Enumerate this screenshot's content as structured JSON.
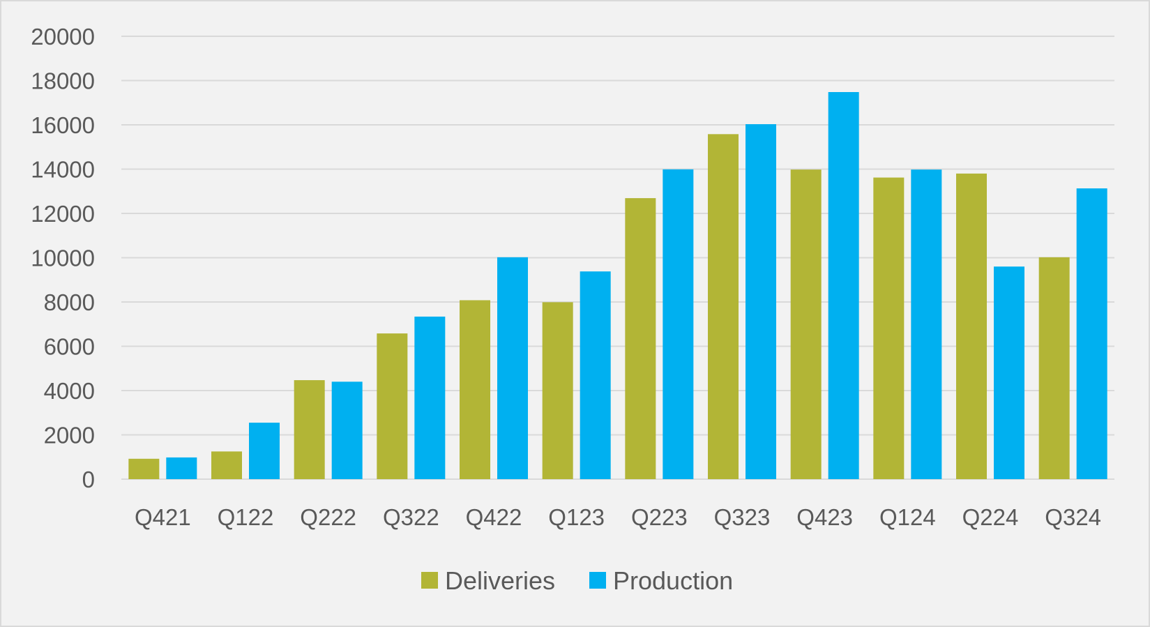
{
  "chart_data": {
    "type": "bar",
    "title": "",
    "xlabel": "",
    "ylabel": "",
    "categories": [
      "Q421",
      "Q122",
      "Q222",
      "Q322",
      "Q422",
      "Q123",
      "Q223",
      "Q323",
      "Q423",
      "Q124",
      "Q224",
      "Q324"
    ],
    "series": [
      {
        "name": "Deliveries",
        "color": "#b2b536",
        "values": [
          920,
          1250,
          4470,
          6580,
          8080,
          7990,
          12690,
          15580,
          13980,
          13620,
          13800,
          10020
        ]
      },
      {
        "name": "Production",
        "color": "#00b0f0",
        "values": [
          980,
          2550,
          4400,
          7340,
          10020,
          9380,
          13990,
          16030,
          17480,
          13980,
          9600,
          13130
        ]
      }
    ],
    "ylim": [
      0,
      20000
    ],
    "y_ticks": [
      "0",
      "2000",
      "4000",
      "6000",
      "8000",
      "10000",
      "12000",
      "14000",
      "16000",
      "18000",
      "20000"
    ],
    "grid": true,
    "legend": "bottom"
  }
}
